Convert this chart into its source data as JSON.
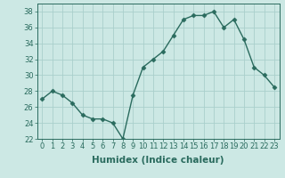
{
  "x": [
    0,
    1,
    2,
    3,
    4,
    5,
    6,
    7,
    8,
    9,
    10,
    11,
    12,
    13,
    14,
    15,
    16,
    17,
    18,
    19,
    20,
    21,
    22,
    23
  ],
  "y": [
    27.0,
    28.0,
    27.5,
    26.5,
    25.0,
    24.5,
    24.5,
    24.0,
    22.0,
    27.5,
    31.0,
    32.0,
    33.0,
    35.0,
    37.0,
    37.5,
    37.5,
    38.0,
    36.0,
    37.0,
    34.5,
    31.0,
    30.0,
    28.5
  ],
  "xlabel": "Humidex (Indice chaleur)",
  "ylim": [
    22,
    39
  ],
  "xlim": [
    -0.5,
    23.5
  ],
  "yticks": [
    22,
    24,
    26,
    28,
    30,
    32,
    34,
    36,
    38
  ],
  "xtick_labels": [
    "0",
    "1",
    "2",
    "3",
    "4",
    "5",
    "6",
    "7",
    "8",
    "9",
    "10",
    "11",
    "12",
    "13",
    "14",
    "15",
    "16",
    "17",
    "18",
    "19",
    "20",
    "21",
    "22",
    "23"
  ],
  "line_color": "#2a6b5e",
  "bg_color": "#cce8e4",
  "grid_color": "#aacfcc",
  "marker": "D",
  "marker_size": 2.5,
  "line_width": 1.0,
  "xlabel_fontsize": 7.5,
  "tick_fontsize": 6.0
}
